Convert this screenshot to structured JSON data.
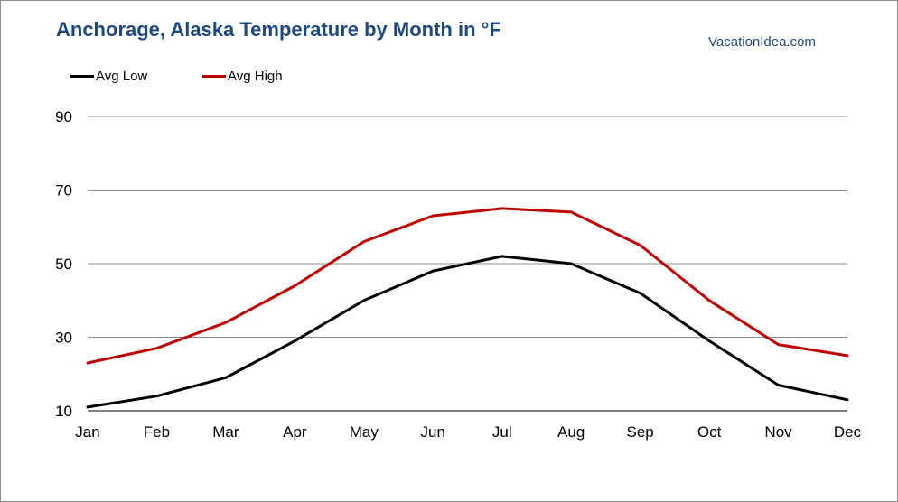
{
  "header": {
    "title": "Anchorage, Alaska Temperature by Month in °F",
    "source": "VacationIdea.com"
  },
  "chart_data": {
    "type": "line",
    "title": "Anchorage, Alaska Temperature by Month in °F",
    "xlabel": "",
    "ylabel": "",
    "categories": [
      "Jan",
      "Feb",
      "Mar",
      "Apr",
      "May",
      "Jun",
      "Jul",
      "Aug",
      "Sep",
      "Oct",
      "Nov",
      "Dec"
    ],
    "ylim": [
      10,
      90
    ],
    "yticks": [
      10,
      30,
      50,
      70,
      90
    ],
    "grid": true,
    "legend_position": "top-left",
    "series": [
      {
        "name": "Avg Low",
        "color": "#000000",
        "values": [
          11,
          14,
          19,
          29,
          40,
          48,
          52,
          50,
          42,
          29,
          17,
          13
        ]
      },
      {
        "name": "Avg High",
        "color": "#c00000",
        "values": [
          23,
          27,
          34,
          44,
          56,
          63,
          65,
          64,
          55,
          40,
          28,
          25
        ]
      }
    ]
  }
}
